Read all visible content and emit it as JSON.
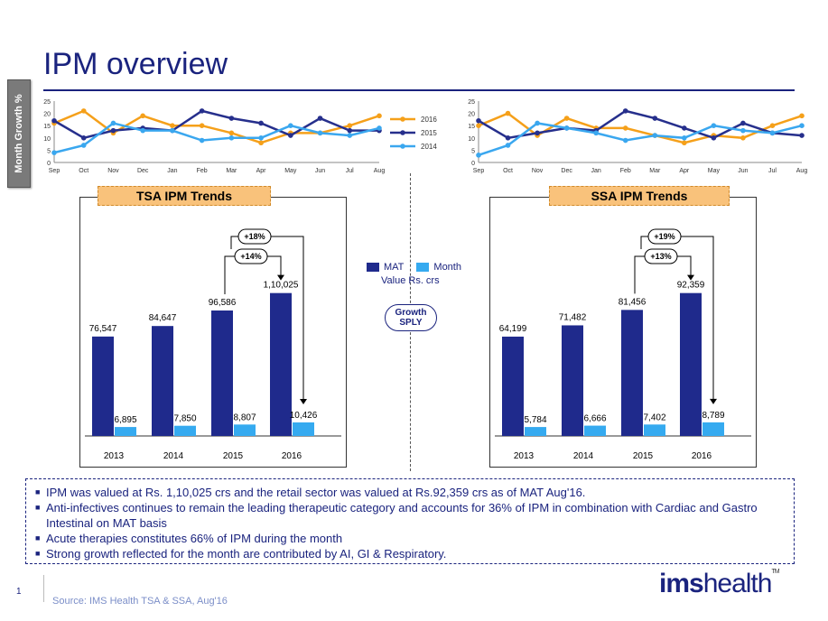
{
  "header": {
    "title": "IPM overview",
    "side_label": "Month Growth %"
  },
  "colors": {
    "mat": "#1f2a8c",
    "month": "#35aaf0",
    "s2016": "#f5a01a",
    "s2015": "#262f8c",
    "s2014": "#3aa7ef"
  },
  "chart_data": [
    {
      "id": "tsa-growth",
      "type": "line",
      "categories": [
        "Sep",
        "Oct",
        "Nov",
        "Dec",
        "Jan",
        "Feb",
        "Mar",
        "Apr",
        "May",
        "Jun",
        "Jul",
        "Aug"
      ],
      "ylim": [
        0,
        25
      ],
      "yticks": [
        "0",
        "5",
        "10",
        "15",
        "20",
        "25"
      ],
      "grid": false,
      "legend": "right",
      "series": [
        {
          "name": "2016",
          "values": [
            16,
            21,
            12,
            19,
            15,
            15,
            12,
            8,
            12,
            12,
            15,
            19
          ]
        },
        {
          "name": "2015",
          "values": [
            17,
            10,
            13,
            14,
            13,
            21,
            18,
            16,
            11,
            18,
            13,
            13
          ]
        },
        {
          "name": "2014",
          "values": [
            4,
            7,
            16,
            13,
            13,
            9,
            10,
            10,
            15,
            12,
            11,
            14
          ]
        }
      ]
    },
    {
      "id": "ssa-growth",
      "type": "line",
      "categories": [
        "Sep",
        "Oct",
        "Nov",
        "Dec",
        "Jan",
        "Feb",
        "Mar",
        "Apr",
        "May",
        "Jun",
        "Jul",
        "Aug"
      ],
      "ylim": [
        0,
        25
      ],
      "yticks": [
        "0",
        "5",
        "10",
        "15",
        "20",
        "25"
      ],
      "grid": false,
      "series": [
        {
          "name": "2016",
          "values": [
            15,
            20,
            11,
            18,
            14,
            14,
            11,
            8,
            11,
            10,
            15,
            19
          ]
        },
        {
          "name": "2015",
          "values": [
            17,
            10,
            12,
            14,
            13,
            21,
            18,
            14,
            10,
            16,
            12,
            11
          ]
        },
        {
          "name": "2014",
          "values": [
            3,
            7,
            16,
            14,
            12,
            9,
            11,
            10,
            15,
            13,
            12,
            15
          ]
        }
      ]
    },
    {
      "id": "tsa-trends",
      "type": "bar",
      "title": "TSA IPM Trends",
      "categories": [
        "2013",
        "2014",
        "2015",
        "2016"
      ],
      "series": [
        {
          "name": "MAT",
          "values": [
            76547,
            84647,
            96586,
            110025
          ],
          "labels": [
            "76,547",
            "84,647",
            "96,586",
            "1,10,025"
          ]
        },
        {
          "name": "Month",
          "values": [
            6895,
            7850,
            8807,
            10426
          ],
          "labels": [
            "6,895",
            "7,850",
            "8,807",
            "10,426"
          ]
        }
      ],
      "annotations": [
        "+14%",
        "+18%"
      ]
    },
    {
      "id": "ssa-trends",
      "type": "bar",
      "title": "SSA IPM Trends",
      "categories": [
        "2013",
        "2014",
        "2015",
        "2016"
      ],
      "series": [
        {
          "name": "MAT",
          "values": [
            64199,
            71482,
            81456,
            92359
          ],
          "labels": [
            "64,199",
            "71,482",
            "81,456",
            "92,359"
          ]
        },
        {
          "name": "Month",
          "values": [
            5784,
            6666,
            7402,
            8789
          ],
          "labels": [
            "5,784",
            "6,666",
            "7,402",
            "8,789"
          ]
        }
      ],
      "annotations": [
        "+13%",
        "+19%"
      ]
    }
  ],
  "legend": {
    "mat": "MAT",
    "month": "Month",
    "unit": "Value Rs. crs"
  },
  "growth_badge": {
    "line1": "Growth",
    "line2": "SPLY"
  },
  "notes": [
    "IPM was valued at Rs. 1,10,025 crs and the retail sector was valued at Rs.92,359 crs as of MAT Aug'16.",
    "Anti-infectives continues to remain the leading therapeutic category and accounts for 36% of IPM in combination with Cardiac and Gastro Intestinal on MAT basis",
    "Acute therapies constitutes 66% of IPM during the month",
    "Strong growth reflected for the month are contributed by AI, GI & Respiratory."
  ],
  "footer": {
    "page": "1",
    "source": "Source: IMS Health TSA & SSA, Aug'16",
    "logo_a": "ims",
    "logo_b": "health",
    "tm": "TM"
  }
}
